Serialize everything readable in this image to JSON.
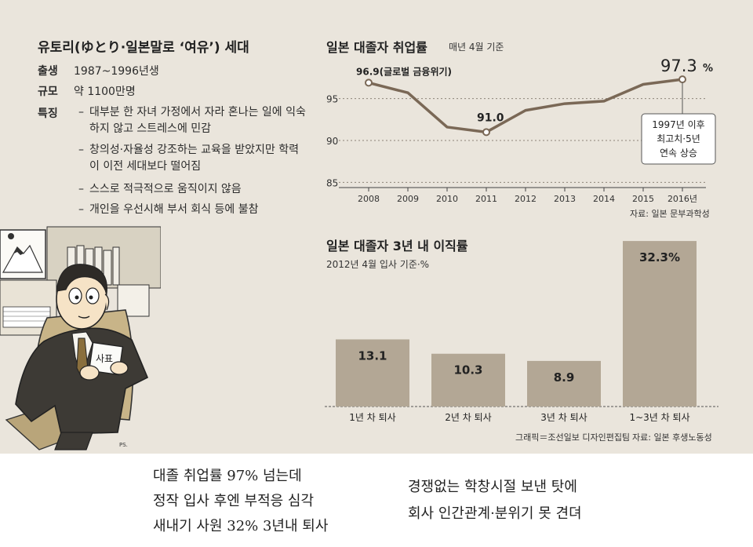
{
  "info": {
    "title": "유토리(ゆとり·일본말로 ‘여유’) 세대",
    "rows": [
      {
        "key": "출생",
        "value": "1987~1996년생"
      },
      {
        "key": "규모",
        "value": "약 1100만명"
      }
    ],
    "features_key": "특징",
    "features": [
      "대부분 한 자녀 가정에서 자라 혼나는 일에 익숙하지 않고 스트레스에 민감",
      "창의성·자율성 강조하는 교육을 받았지만 학력이 이전 세대보다 떨어짐",
      "스스로 적극적으로 움직이지 않음",
      "개인을 우선시해 부서 회식 등에 불참"
    ]
  },
  "illustration": {
    "paper_label": "사표",
    "signature": "PS."
  },
  "chart_data": [
    {
      "type": "line",
      "title": "일본 대졸자 취업률",
      "subtitle": "매년 4월 기준",
      "x": [
        "2008",
        "2009",
        "2010",
        "2011",
        "2012",
        "2013",
        "2014",
        "2015",
        "2016년"
      ],
      "series": [
        {
          "values": [
            96.9,
            95.7,
            91.6,
            91.0,
            93.6,
            94.4,
            94.7,
            96.7,
            97.3
          ]
        }
      ],
      "yticks": [
        85,
        90,
        95
      ],
      "ylim": [
        84,
        99
      ],
      "annotations": {
        "first": "96.9(글로벌 금융위기)",
        "low": "91.0",
        "last": "97.3",
        "last_unit": "%",
        "callout": [
          "1997년 이후",
          "최고치·5년",
          "연속 상승"
        ]
      },
      "source": "자료: 일본 문부과학성",
      "line_color": "#7a6856"
    },
    {
      "type": "bar",
      "title": "일본 대졸자 3년 내 이직률",
      "subtitle": "2012년 4월 입사 기준·%",
      "categories": [
        "1년 차 퇴사",
        "2년 차 퇴사",
        "3년 차 퇴사",
        "1~3년 차 퇴사"
      ],
      "values": [
        13.1,
        10.3,
        8.9,
        32.3
      ],
      "value_labels": [
        "13.1",
        "10.3",
        "8.9",
        "32.3%"
      ],
      "ylim": [
        0,
        34
      ],
      "credit": "그래픽＝조선일보 디자인편집팀",
      "source": "자료: 일본 후생노동성",
      "bar_color": "#b3a795"
    }
  ],
  "caption": {
    "left": [
      "대졸 취업률 97% 넘는데",
      "정작 입사 후엔 부적응 심각",
      "새내기 사원 32% 3년내 퇴사"
    ],
    "right": [
      "경쟁없는 학창시절 보낸 탓에",
      "회사 인간관계·분위기 못 견뎌"
    ]
  }
}
